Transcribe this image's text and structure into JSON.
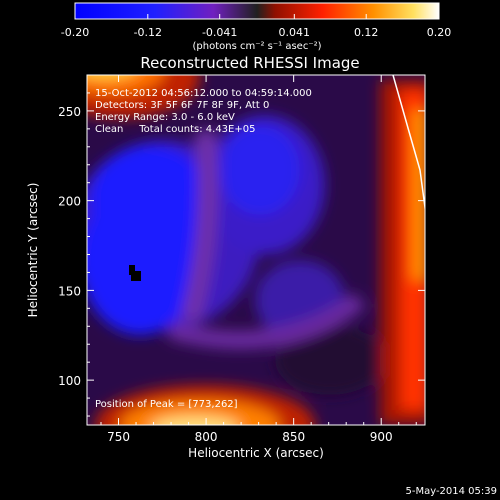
{
  "timestamp": "5-May-2014 05:39",
  "chart_data": {
    "type": "heatmap",
    "title": "Reconstructed RHESSI Image",
    "xlabel": "Heliocentric X (arcsec)",
    "ylabel": "Heliocentric Y (arcsec)",
    "xlim": [
      732,
      925
    ],
    "ylim": [
      75,
      270
    ],
    "x_ticks": [
      750,
      800,
      850,
      900
    ],
    "y_ticks": [
      100,
      150,
      200,
      250
    ],
    "colorbar": {
      "min": -0.2,
      "max": 0.2,
      "ticks": [
        "-0.20",
        "-0.12",
        "-0.041",
        "0.041",
        "0.12",
        "0.20"
      ],
      "tick_values": [
        -0.2,
        -0.12,
        -0.041,
        0.041,
        0.12,
        0.2
      ],
      "units": "(photons cm⁻² s⁻¹ asec⁻²)",
      "colormap": [
        "#000000",
        "#1010ff",
        "#6020c0",
        "#a02000",
        "#ff3000",
        "#ff8000",
        "#ffd000",
        "#ffffff"
      ]
    },
    "annotations": [
      "15-Oct-2012 04:56:12.000 to 04:59:14.000",
      "Detectors: 3F 5F 6F 7F 8F 9F, Att 0",
      "Energy Range: 3.0 - 6.0 keV",
      "Clean     Total counts: 4.43E+05"
    ],
    "peak_label": "Position of Peak = [773,262]",
    "features": [
      {
        "name": "bright-source-top-left",
        "x": 773,
        "y": 262,
        "value": 0.2
      },
      {
        "name": "bright-source-bottom",
        "x": 800,
        "y": 80,
        "value": 0.19
      },
      {
        "name": "bright-edge-right",
        "x": 915,
        "y": 180,
        "value": 0.15
      },
      {
        "name": "dark-spot",
        "x": 764,
        "y": 157,
        "value": -0.2
      }
    ],
    "grid": false
  }
}
